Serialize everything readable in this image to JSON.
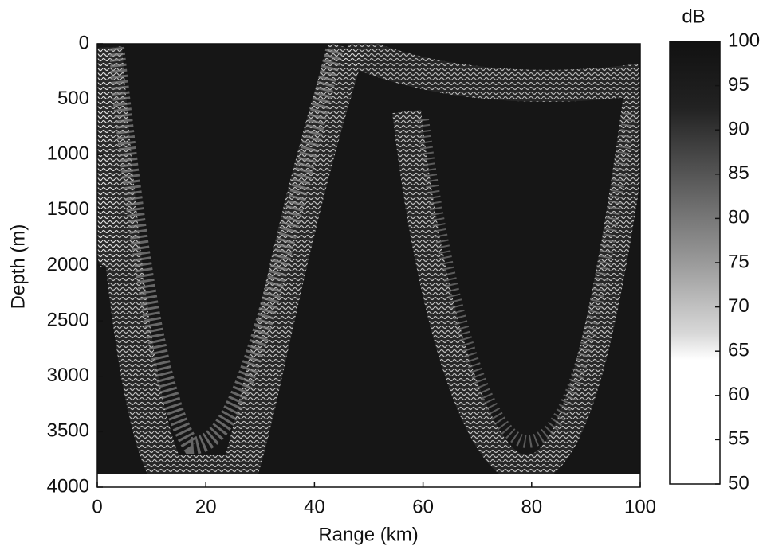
{
  "chart_data": {
    "type": "heatmap",
    "xlabel": "Range (km)",
    "ylabel": "Depth (m)",
    "xlim": [
      0,
      100
    ],
    "xticks": [
      0,
      20,
      40,
      60,
      80,
      100
    ],
    "ylim": [
      0,
      4000
    ],
    "yticks": [
      0,
      500,
      1000,
      1500,
      2000,
      2500,
      3000,
      3500,
      4000
    ],
    "y_reversed": true,
    "colorbar": {
      "label": "dB",
      "lim": [
        50,
        100
      ],
      "ticks": [
        50,
        55,
        60,
        65,
        70,
        75,
        80,
        85,
        90,
        95,
        100
      ]
    }
  }
}
